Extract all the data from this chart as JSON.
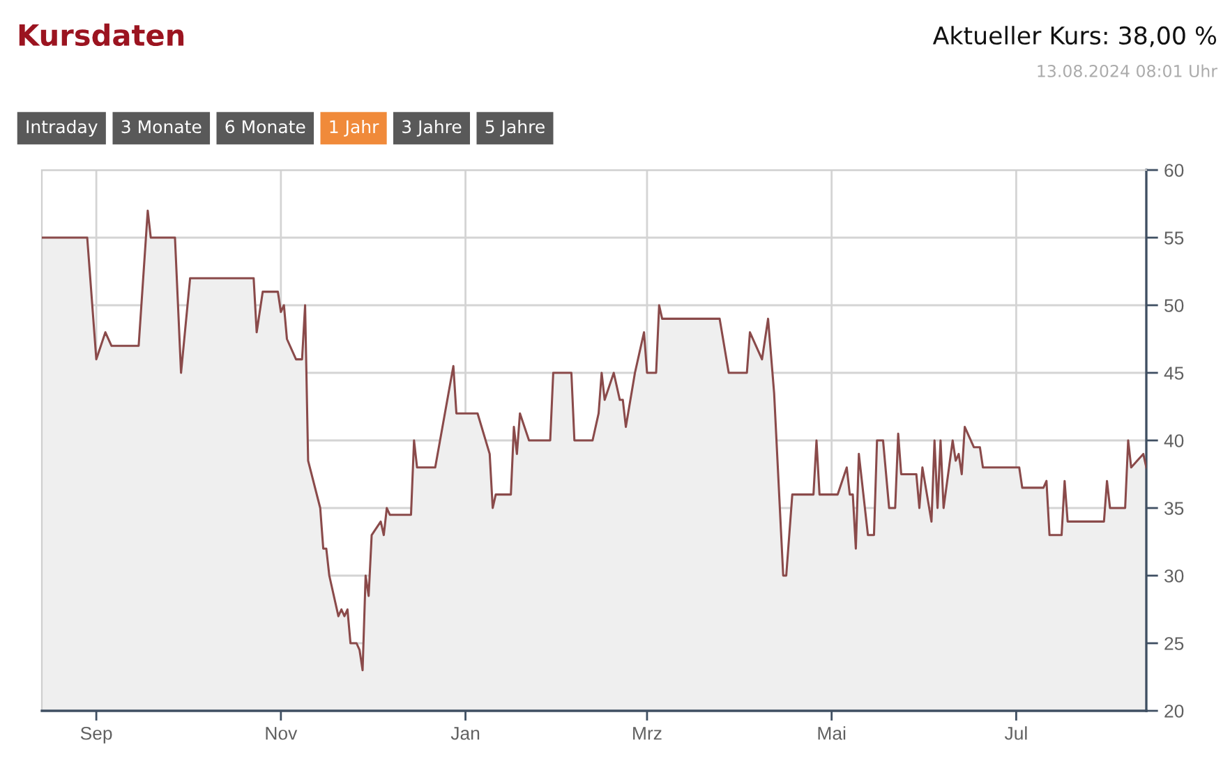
{
  "chart_data": {
    "type": "area",
    "title": "Kursdaten",
    "subtitle": "Aktueller Kurs: 38,00 %",
    "annotations": [
      "13.08.2024 08:01 Uhr",
      "Intraday",
      "3 Monate",
      "6 Monate",
      "1 Jahr",
      "3 Jahre",
      "5 Jahre"
    ],
    "x": [
      "2023-08-14",
      "2023-08-29",
      "2023-09-01",
      "2023-09-04",
      "2023-09-06",
      "2023-09-15",
      "2023-09-18",
      "2023-09-19",
      "2023-09-27",
      "2023-09-29",
      "2023-10-02",
      "2023-10-23",
      "2023-10-24",
      "2023-10-26",
      "2023-10-31",
      "2023-11-01",
      "2023-11-02",
      "2023-11-03",
      "2023-11-06",
      "2023-11-08",
      "2023-11-09",
      "2023-11-10",
      "2023-11-14",
      "2023-11-15",
      "2023-11-16",
      "2023-11-17",
      "2023-11-20",
      "2023-11-21",
      "2023-11-22",
      "2023-11-23",
      "2023-11-24",
      "2023-11-26",
      "2023-11-27",
      "2023-11-28",
      "2023-11-29",
      "2023-11-30",
      "2023-12-01",
      "2023-12-04",
      "2023-12-05",
      "2023-12-06",
      "2023-12-07",
      "2023-12-13",
      "2023-12-14",
      "2023-12-15",
      "2023-12-16",
      "2023-12-22",
      "2023-12-28",
      "2023-12-29",
      "2024-01-05",
      "2024-01-09",
      "2024-01-10",
      "2024-01-11",
      "2024-01-16",
      "2024-01-17",
      "2024-01-18",
      "2024-01-19",
      "2024-01-22",
      "2024-01-29",
      "2024-01-30",
      "2024-02-05",
      "2024-02-06",
      "2024-02-12",
      "2024-02-14",
      "2024-02-15",
      "2024-02-16",
      "2024-02-19",
      "2024-02-21",
      "2024-02-22",
      "2024-02-23",
      "2024-02-26",
      "2024-02-29",
      "2024-03-01",
      "2024-03-04",
      "2024-03-05",
      "2024-03-06",
      "2024-03-25",
      "2024-03-28",
      "2024-04-03",
      "2024-04-04",
      "2024-04-08",
      "2024-04-10",
      "2024-04-12",
      "2024-04-15",
      "2024-04-16",
      "2024-04-18",
      "2024-04-25",
      "2024-04-26",
      "2024-04-27",
      "2024-05-03",
      "2024-05-06",
      "2024-05-07",
      "2024-05-08",
      "2024-05-09",
      "2024-05-10",
      "2024-05-13",
      "2024-05-15",
      "2024-05-16",
      "2024-05-18",
      "2024-05-20",
      "2024-05-22",
      "2024-05-23",
      "2024-05-24",
      "2024-05-29",
      "2024-05-30",
      "2024-05-31",
      "2024-06-03",
      "2024-06-04",
      "2024-06-05",
      "2024-06-06",
      "2024-06-07",
      "2024-06-10",
      "2024-06-11",
      "2024-06-12",
      "2024-06-13",
      "2024-06-14",
      "2024-06-17",
      "2024-06-19",
      "2024-06-20",
      "2024-07-02",
      "2024-07-03",
      "2024-07-10",
      "2024-07-11",
      "2024-07-12",
      "2024-07-16",
      "2024-07-17",
      "2024-07-18",
      "2024-07-30",
      "2024-07-31",
      "2024-08-01",
      "2024-08-06",
      "2024-08-07",
      "2024-08-08",
      "2024-08-10",
      "2024-08-12",
      "2024-08-13"
    ],
    "series": [
      {
        "color": "#8a4a4a",
        "values": [
          55,
          55,
          46,
          48,
          47,
          47,
          57,
          55,
          55,
          45,
          52,
          52,
          48,
          51,
          51,
          49.5,
          50,
          47.5,
          46,
          46,
          50,
          38.5,
          35,
          32,
          32,
          30,
          27,
          27.5,
          27,
          27.5,
          25,
          25,
          24.5,
          23,
          30,
          28.5,
          33,
          34,
          33,
          35,
          34.5,
          34.5,
          34.5,
          40,
          38,
          38,
          45.5,
          42,
          42,
          39,
          35,
          36,
          36,
          41,
          39,
          42,
          40,
          40,
          45,
          45,
          40,
          40,
          42,
          45,
          43,
          45,
          43,
          43,
          41,
          45,
          48,
          45,
          45,
          50,
          49,
          49,
          45,
          45,
          48,
          46,
          49,
          43.5,
          30,
          30,
          36,
          36,
          40,
          36,
          36,
          38,
          36,
          36,
          32,
          39,
          33,
          33,
          40,
          40,
          35,
          35,
          40.5,
          37.5,
          37.5,
          35,
          38,
          34,
          40,
          35,
          40,
          35,
          40,
          38.5,
          39,
          37.5,
          41,
          39.5,
          39.5,
          38,
          38,
          36.5,
          36.5,
          37,
          33,
          33,
          37,
          34,
          34,
          37,
          35,
          35,
          40,
          38,
          38.5,
          39,
          38
        ]
      }
    ],
    "xlim": [
      "2023-08-14",
      "2024-08-13"
    ],
    "xticks": [
      {
        "value": "2023-09-01",
        "label": "Sep"
      },
      {
        "value": "2023-11-01",
        "label": "Nov"
      },
      {
        "value": "2024-01-01",
        "label": "Jan"
      },
      {
        "value": "2024-03-01",
        "label": "Mrz"
      },
      {
        "value": "2024-05-01",
        "label": "Mai"
      },
      {
        "value": "2024-07-01",
        "label": "Jul"
      }
    ],
    "ylim": [
      20,
      60
    ],
    "yticks": [
      20,
      25,
      30,
      35,
      40,
      45,
      50,
      55,
      60
    ],
    "grid": true
  }
}
